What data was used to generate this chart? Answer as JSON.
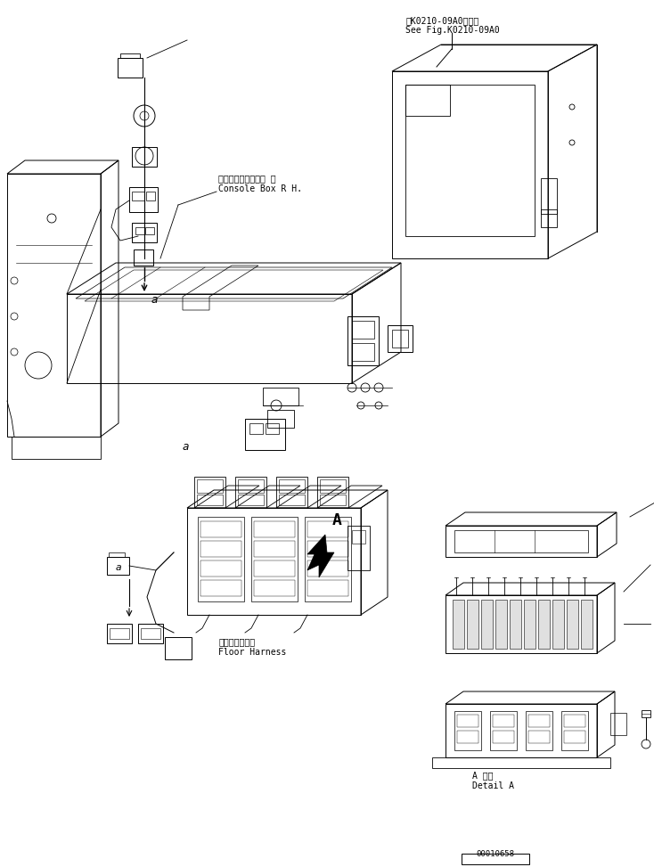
{
  "bg_color": "#ffffff",
  "line_color": "#000000",
  "fig_width": 7.34,
  "fig_height": 9.73,
  "title_ref_line1": "第K0210-09A0図参照",
  "title_ref_line2": "See Fig.K0210-09A0",
  "label_console": "コンソールボックス 右",
  "label_console2": "Console Box R H.",
  "label_floor_harness1": "フロアハーネス",
  "label_floor_harness2": "Floor Harness",
  "label_detail_a1": "A 詳細",
  "label_detail_a2": "Detail A",
  "serial_number": "00010658",
  "label_a_arrow": "A"
}
